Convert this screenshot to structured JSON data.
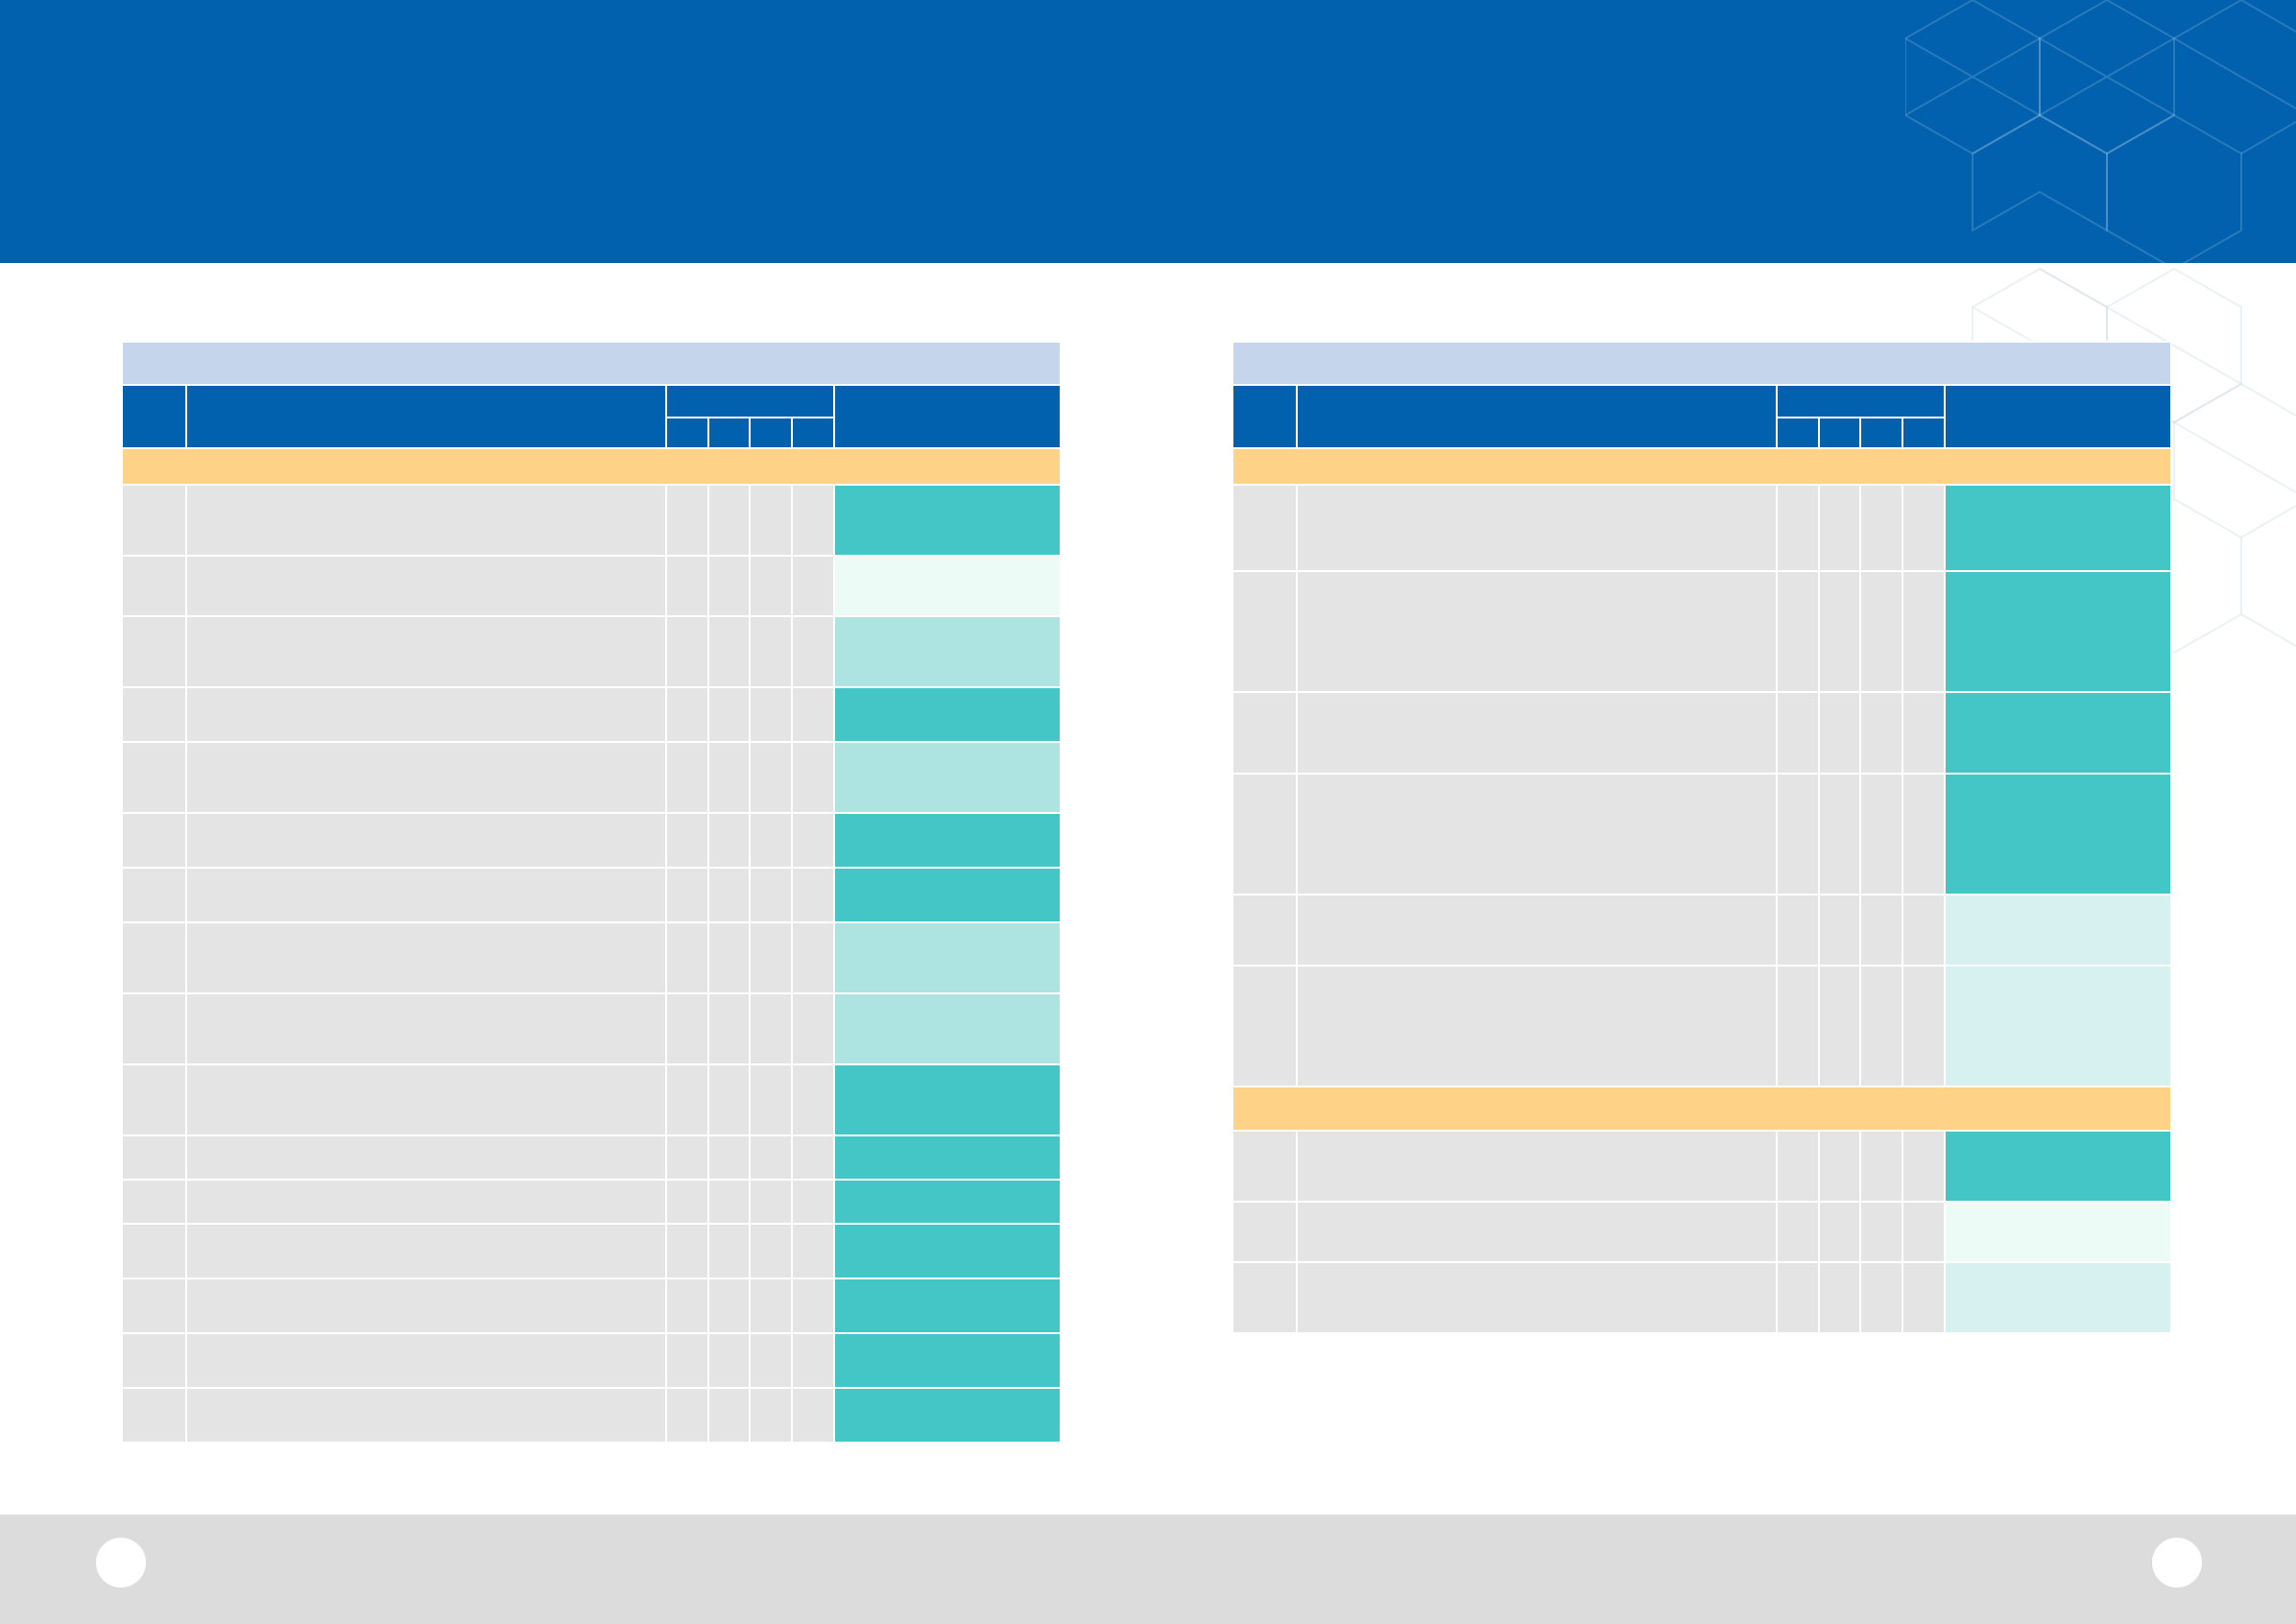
{
  "colors": {
    "header": "#0161ae",
    "table_title": "#c5d5ec",
    "column_header": "#0161ae",
    "section": "#fed287",
    "cell": "#e4e4e4",
    "result_strong": "#45c6c6",
    "result_mid": "#ade4e1",
    "result_light": "#d7f1f0",
    "result_pale": "#edfbf6",
    "footer": "#dcdcdc"
  },
  "header": {
    "title": ""
  },
  "footer": {
    "page_left": "",
    "page_right": ""
  },
  "left_table": {
    "title": "",
    "columns": {
      "no": "",
      "item": "",
      "group": "",
      "sub": [
        "",
        "",
        "",
        ""
      ],
      "result": ""
    },
    "sections": [
      {
        "label": "",
        "rows": [
          {
            "shade": "strong"
          },
          {
            "shade": "pale"
          },
          {
            "shade": "mid"
          },
          {
            "shade": "strong"
          },
          {
            "shade": "mid"
          },
          {
            "shade": "strong"
          },
          {
            "shade": "strong"
          },
          {
            "shade": "mid"
          },
          {
            "shade": "mid"
          },
          {
            "shade": "strong"
          },
          {
            "shade": "strong"
          },
          {
            "shade": "strong"
          },
          {
            "shade": "strong"
          },
          {
            "shade": "strong"
          },
          {
            "shade": "strong"
          },
          {
            "shade": "strong"
          }
        ]
      }
    ]
  },
  "right_table": {
    "title": "",
    "columns": {
      "no": "",
      "item": "",
      "group": "",
      "sub": [
        "",
        "",
        "",
        ""
      ],
      "result": ""
    },
    "sections": [
      {
        "label": "",
        "rows": [
          {
            "shade": "strong"
          },
          {
            "shade": "strong"
          },
          {
            "shade": "strong"
          },
          {
            "shade": "strong"
          },
          {
            "shade": "light"
          },
          {
            "shade": "light"
          }
        ]
      },
      {
        "label": "",
        "rows": [
          {
            "shade": "strong"
          },
          {
            "shade": "pale"
          },
          {
            "shade": "light"
          }
        ]
      }
    ]
  }
}
